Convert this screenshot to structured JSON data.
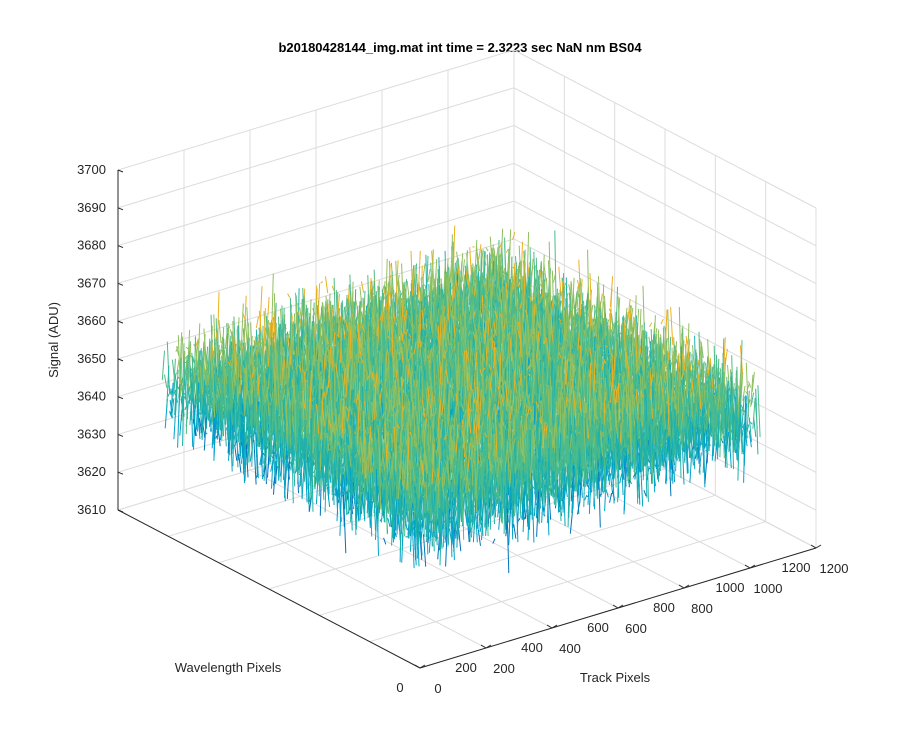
{
  "chart_data": {
    "type": "surface",
    "title": "b20180428144_img.mat int time = 2.3223 sec  NaN nm BS04",
    "xlabel": "Track Pixels",
    "ylabel": "Wavelength Pixels",
    "zlabel": "Signal (ADU)",
    "xlim": [
      0,
      1200
    ],
    "ylim": [
      0,
      1200
    ],
    "zlim": [
      3610,
      3700
    ],
    "x_ticks": [
      0,
      200,
      400,
      600,
      800,
      1000,
      1200
    ],
    "y_ticks": [
      0,
      200,
      400,
      600,
      800,
      1000,
      1200
    ],
    "z_ticks": [
      3610,
      3620,
      3630,
      3640,
      3650,
      3660,
      3670,
      3680,
      3690,
      3700
    ],
    "x_tick_labels": [
      "0",
      "200",
      "400",
      "600",
      "800",
      "1000",
      "1200"
    ],
    "y_tick_labels": [
      "0",
      "200",
      "400",
      "600",
      "800",
      "1000",
      "1200"
    ],
    "z_tick_labels": [
      "3610",
      "3620",
      "3630",
      "3640",
      "3650",
      "3660",
      "3670",
      "3680",
      "3690",
      "3700"
    ],
    "data_extent": {
      "x": [
        0,
        1024
      ],
      "y": [
        0,
        1024
      ]
    },
    "signal_mean": 3650,
    "signal_spread": 13,
    "colormap": [
      "#0072bd",
      "#00a2c8",
      "#20b2aa",
      "#4dbb8a",
      "#90c060",
      "#edb120"
    ],
    "grid": true,
    "view": "3d-azimuth-negative"
  }
}
